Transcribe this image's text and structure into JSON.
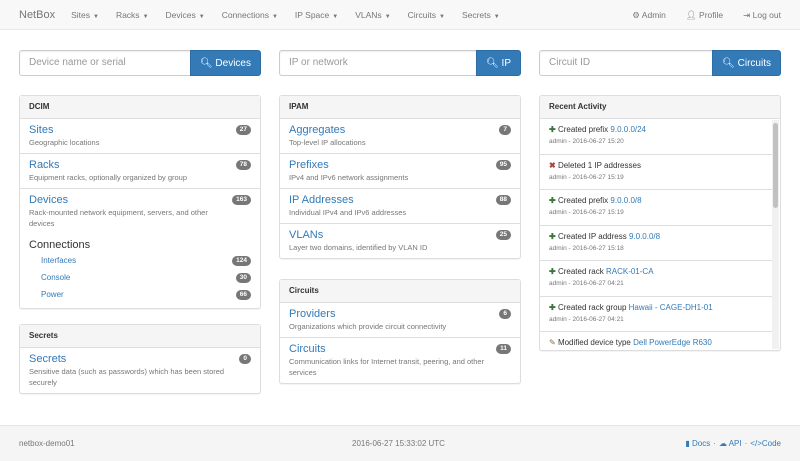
{
  "nav": {
    "brand": "NetBox",
    "menus": [
      "Sites",
      "Racks",
      "Devices",
      "Connections",
      "IP Space",
      "VLANs",
      "Circuits",
      "Secrets"
    ],
    "admin": "Admin",
    "profile": "Profile",
    "logout": "Log out"
  },
  "search": [
    {
      "placeholder": "Device name or serial",
      "button": "Devices"
    },
    {
      "placeholder": "IP or network",
      "button": "IP"
    },
    {
      "placeholder": "Circuit ID",
      "button": "Circuits"
    }
  ],
  "dcim": {
    "title": "DCIM",
    "items": [
      {
        "label": "Sites",
        "desc": "Geographic locations",
        "count": "27"
      },
      {
        "label": "Racks",
        "desc": "Equipment racks, optionally organized by group",
        "count": "78"
      },
      {
        "label": "Devices",
        "desc": "Rack-mounted network equipment, servers, and other devices",
        "count": "163"
      }
    ],
    "connections": {
      "label": "Connections",
      "items": [
        {
          "label": "Interfaces",
          "count": "124"
        },
        {
          "label": "Console",
          "count": "30"
        },
        {
          "label": "Power",
          "count": "66"
        }
      ]
    }
  },
  "secrets": {
    "title": "Secrets",
    "items": [
      {
        "label": "Secrets",
        "desc": "Sensitive data (such as passwords) which has been stored securely",
        "count": "0"
      }
    ]
  },
  "ipam": {
    "title": "IPAM",
    "items": [
      {
        "label": "Aggregates",
        "desc": "Top-level IP allocations",
        "count": "7"
      },
      {
        "label": "Prefixes",
        "desc": "IPv4 and IPv6 network assignments",
        "count": "95"
      },
      {
        "label": "IP Addresses",
        "desc": "Individual IPv4 and IPv6 addresses",
        "count": "88"
      },
      {
        "label": "VLANs",
        "desc": "Layer two domains, identified by VLAN ID",
        "count": "25"
      }
    ]
  },
  "circuits": {
    "title": "Circuits",
    "items": [
      {
        "label": "Providers",
        "desc": "Organizations which provide circuit connectivity",
        "count": "6"
      },
      {
        "label": "Circuits",
        "desc": "Communication links for Internet transit, peering, and other services",
        "count": "11"
      }
    ]
  },
  "activity": {
    "title": "Recent Activity",
    "items": [
      {
        "icon": "plus",
        "action": "Created prefix",
        "link": "9.0.0.0/24",
        "meta": "admin - 2016-06-27 15:20"
      },
      {
        "icon": "remove",
        "action": "Deleted 1 IP addresses",
        "link": "",
        "meta": "admin - 2016-06-27 15:19"
      },
      {
        "icon": "plus",
        "action": "Created prefix",
        "link": "9.0.0.0/8",
        "meta": "admin - 2016-06-27 15:19"
      },
      {
        "icon": "plus",
        "action": "Created IP address",
        "link": "9.0.0.0/8",
        "meta": "admin - 2016-06-27 15:18"
      },
      {
        "icon": "plus",
        "action": "Created rack",
        "link": "RACK-01-CA",
        "meta": "admin - 2016-06-27 04:21"
      },
      {
        "icon": "plus",
        "action": "Created rack group",
        "link": "Hawaii - CAGE-DH1-01",
        "meta": "admin - 2016-06-27 04:21"
      },
      {
        "icon": "pencil",
        "action": "Modified device type",
        "link": "Dell PowerEdge R630",
        "meta": ""
      }
    ]
  },
  "footer": {
    "hostname": "netbox-demo01",
    "time": "2016-06-27 15:33:02 UTC",
    "docs": "Docs",
    "api": "API",
    "code": "Code"
  }
}
